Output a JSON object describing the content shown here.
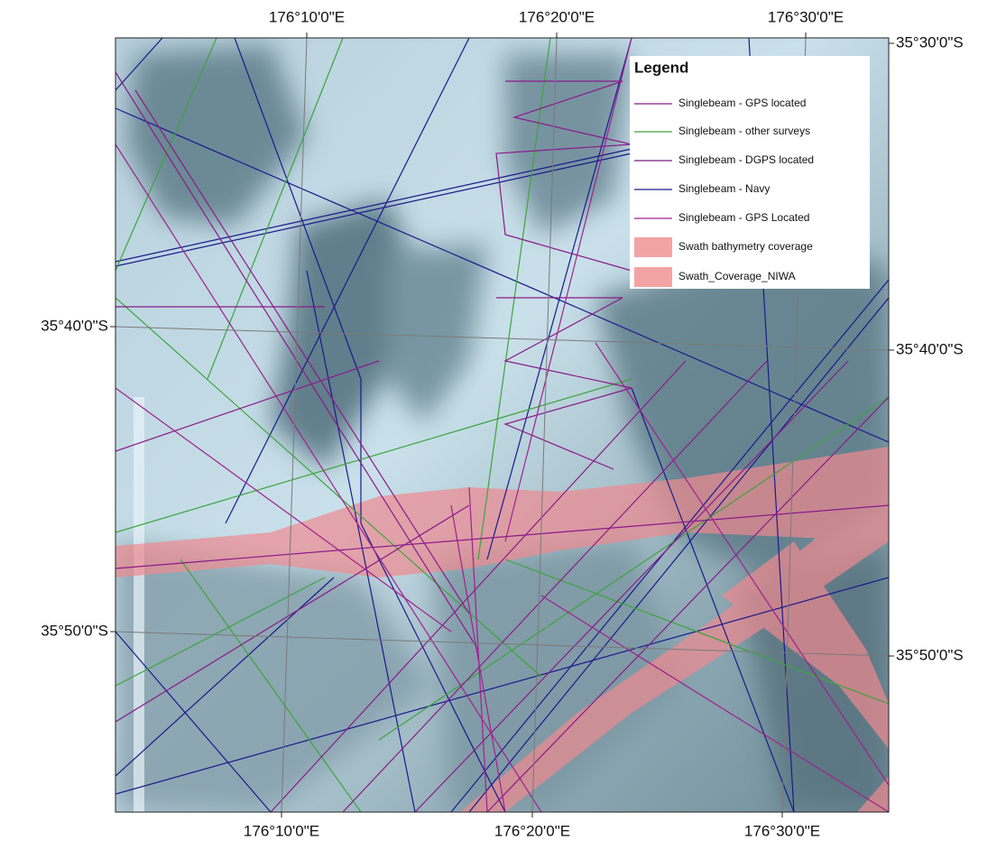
{
  "map": {
    "top_labels": [
      "176°10'0\"E",
      "176°20'0\"E",
      "176°30'0\"E"
    ],
    "bottom_labels": [
      "176°10'0\"E",
      "176°20'0\"E",
      "176°30'0\"E"
    ],
    "left_labels": [
      "35°40'0\"S",
      "35°50'0\"S"
    ],
    "right_labels": [
      "35°30'0\"S",
      "35°40'0\"S",
      "35°50'0\"S"
    ],
    "legend": {
      "title": "Legend",
      "items": [
        {
          "label": "Singlebeam - GPS located",
          "color": "#8b1a8b",
          "symbol": "line"
        },
        {
          "label": "Singlebeam - other surveys",
          "color": "#3ca53c",
          "symbol": "line"
        },
        {
          "label": "Singlebeam - DGPS located",
          "color": "#7a1a80",
          "symbol": "line"
        },
        {
          "label": "Singlebeam - Navy",
          "color": "#1a1a8c",
          "symbol": "line"
        },
        {
          "label": "Singlebeam - GPS Located",
          "color": "#a0208f",
          "symbol": "line"
        },
        {
          "label": "Swath bathymetry coverage",
          "color": "#f2a4a4",
          "symbol": "patch"
        },
        {
          "label": "Swath_Coverage_NIWA",
          "color": "#f2a4a4",
          "symbol": "patch"
        }
      ]
    }
  }
}
